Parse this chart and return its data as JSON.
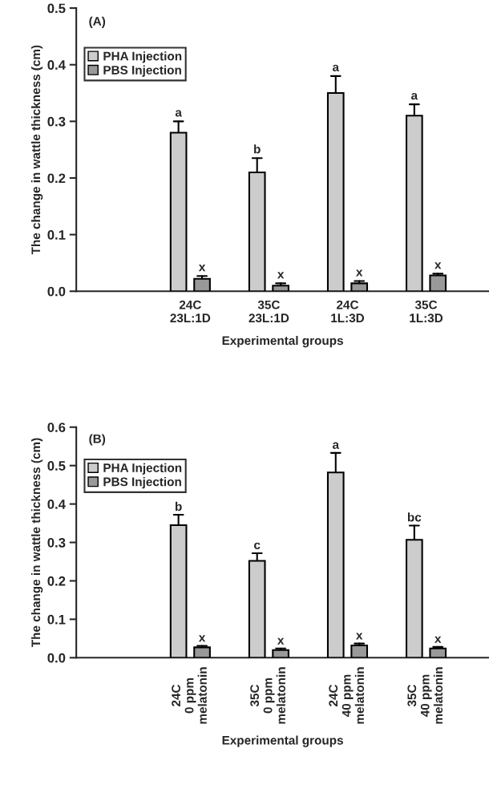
{
  "chart_data": [
    {
      "type": "bar",
      "categories": [
        "24C\n23L:1D",
        "35C\n23L:1D",
        "24C\n1L:3D",
        "35C\n1L:3D"
      ],
      "series": [
        {
          "name": "PHA Injection",
          "color": "#cccccc",
          "values": [
            0.28,
            0.21,
            0.35,
            0.31
          ],
          "value_labels": [
            "a",
            "b",
            "a",
            "a"
          ],
          "errors": [
            [
              0.28,
              0.3
            ],
            [
              0.21,
              0.235
            ],
            [
              0.35,
              0.38
            ],
            [
              0.31,
              0.33
            ]
          ]
        },
        {
          "name": "PBS Injection",
          "color": "#999999",
          "values": [
            0.022,
            0.01,
            0.014,
            0.028
          ],
          "value_labels": [
            "x",
            "x",
            "x",
            "x"
          ],
          "errors": [
            [
              0.022,
              0.027
            ],
            [
              0.01,
              0.014
            ],
            [
              0.014,
              0.018
            ],
            [
              0.028,
              0.031
            ]
          ]
        }
      ],
      "xlabel": "Experimental groups",
      "ylabel": "The change in wattle thickness (cm)",
      "ylim": [
        0,
        0.5
      ],
      "yticks": [
        {
          "value": 0,
          "label": "0.0"
        },
        0.1,
        0.2,
        0.3,
        0.4,
        0.5
      ],
      "legend": "top left",
      "grid": false,
      "annotations": [
        "(A)"
      ]
    },
    {
      "type": "bar",
      "categories": [
        "24C\n0 ppm\nmelatonin",
        "35C\n0 ppm\nmelatonin",
        "24C\n40 ppm\nmelatonin",
        "35C\n40 ppm\nmelatonin"
      ],
      "series": [
        {
          "name": "PHA Injection",
          "color": "#cccccc",
          "values": [
            0.345,
            0.252,
            0.482,
            0.307
          ],
          "value_labels": [
            "b",
            "c",
            "a",
            "bc"
          ],
          "errors": [
            [
              0.345,
              0.372
            ],
            [
              0.252,
              0.272
            ],
            [
              0.482,
              0.533
            ],
            [
              0.307,
              0.344
            ]
          ]
        },
        {
          "name": "PBS Injection",
          "color": "#999999",
          "values": [
            0.027,
            0.02,
            0.032,
            0.024
          ],
          "value_labels": [
            "x",
            "x",
            "x",
            "x"
          ],
          "errors": [
            [
              0.027,
              0.031
            ],
            [
              0.02,
              0.024
            ],
            [
              0.032,
              0.037
            ],
            [
              0.024,
              0.028
            ]
          ]
        }
      ],
      "xlabel": "Experimental groups",
      "ylabel": "The change in wattle thickness (cm)",
      "ylim": [
        0,
        0.6
      ],
      "yticks": [
        {
          "value": 0,
          "label": "0.0"
        },
        0.1,
        0.2,
        0.3,
        0.4,
        0.5,
        0.6
      ],
      "legend": "top left",
      "grid": false,
      "annotations": [
        "(B)"
      ]
    }
  ]
}
